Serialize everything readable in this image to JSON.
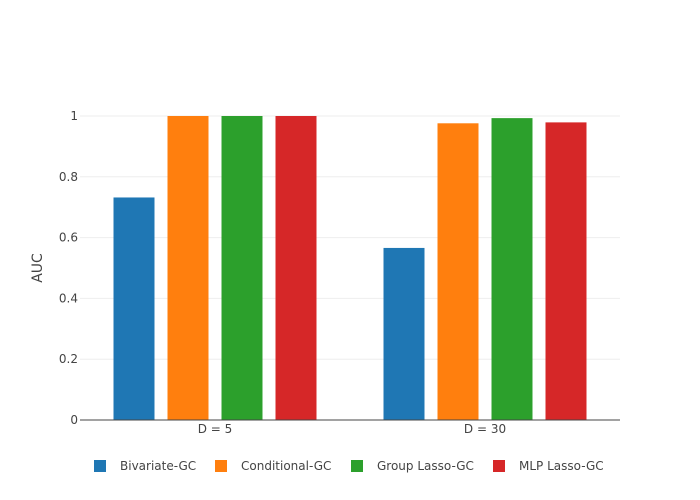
{
  "chart_data": {
    "type": "bar",
    "title": "",
    "xlabel": "",
    "ylabel": "AUC",
    "ylim": [
      0,
      1
    ],
    "yticks": [
      0,
      0.2,
      0.4,
      0.6,
      0.8,
      1
    ],
    "ytick_labels": [
      "0",
      "0.2",
      "0.4",
      "0.6",
      "0.8",
      "1"
    ],
    "grid": true,
    "legend_position": "bottom",
    "categories": [
      "D = 5",
      "D = 30"
    ],
    "series": [
      {
        "name": "Bivariate-GC",
        "color": "#1f77b4",
        "values": [
          0.732,
          0.566
        ]
      },
      {
        "name": "Conditional-GC",
        "color": "#ff7f0e",
        "values": [
          1.0,
          0.976
        ]
      },
      {
        "name": "Group Lasso-GC",
        "color": "#2ca02c",
        "values": [
          1.0,
          0.993
        ]
      },
      {
        "name": "MLP Lasso-GC",
        "color": "#d62728",
        "values": [
          1.0,
          0.979
        ]
      }
    ]
  }
}
